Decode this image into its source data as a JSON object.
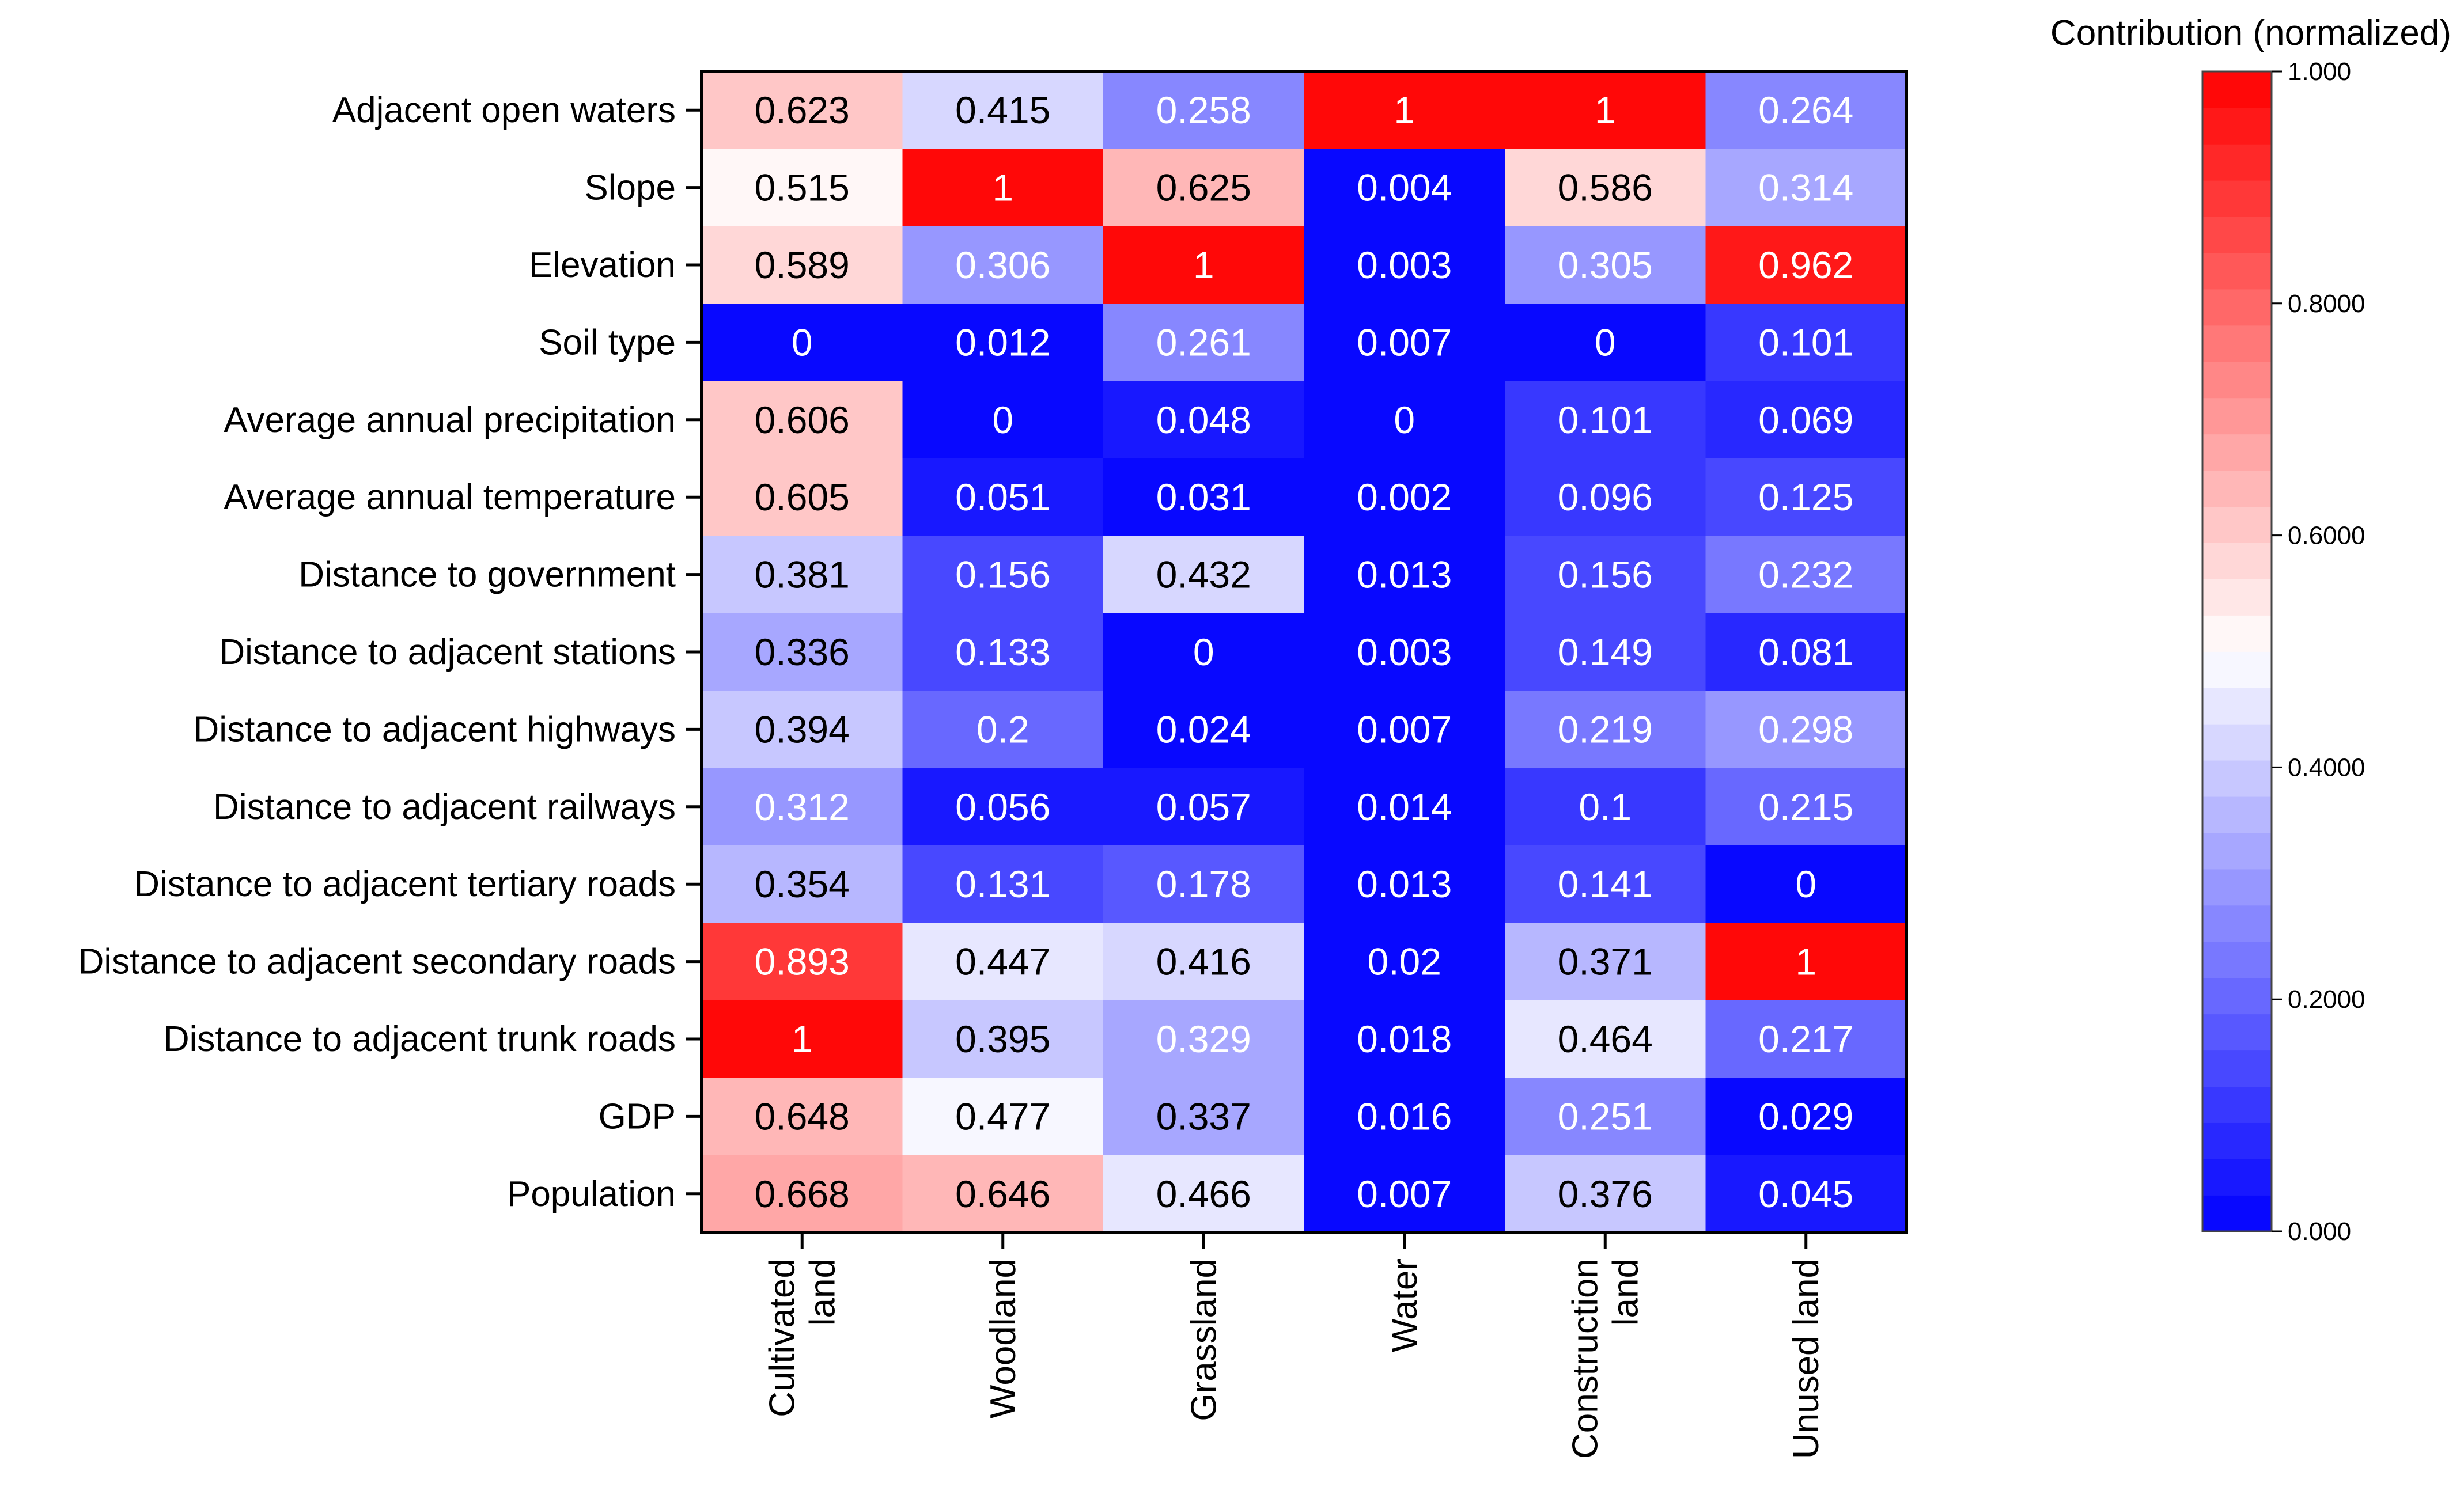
{
  "chart_data": {
    "type": "heatmap",
    "rows": [
      "Adjacent open waters",
      "Slope",
      "Elevation",
      "Soil type",
      "Average annual precipitation",
      "Average annual temperature",
      "Distance to government",
      "Distance to adjacent stations",
      "Distance to adjacent highways",
      "Distance to adjacent railways",
      "Distance to adjacent tertiary roads",
      "Distance to adjacent secondary roads",
      "Distance to adjacent trunk roads",
      "GDP",
      "Population"
    ],
    "columns": [
      [
        "Cultivated",
        "land"
      ],
      [
        "Woodland"
      ],
      [
        "Grassland"
      ],
      [
        "Water"
      ],
      [
        "Construction",
        "land"
      ],
      [
        "Unused land"
      ]
    ],
    "values": [
      [
        0.623,
        0.415,
        0.258,
        1,
        1,
        0.264
      ],
      [
        0.515,
        1,
        0.625,
        0.004,
        0.586,
        0.314
      ],
      [
        0.589,
        0.306,
        1,
        0.003,
        0.305,
        0.962
      ],
      [
        0,
        0.012,
        0.261,
        0.007,
        0,
        0.101
      ],
      [
        0.606,
        0,
        0.048,
        0,
        0.101,
        0.069
      ],
      [
        0.605,
        0.051,
        0.031,
        0.002,
        0.096,
        0.125
      ],
      [
        0.381,
        0.156,
        0.432,
        0.013,
        0.156,
        0.232
      ],
      [
        0.336,
        0.133,
        0,
        0.003,
        0.149,
        0.081
      ],
      [
        0.394,
        0.2,
        0.024,
        0.007,
        0.219,
        0.298
      ],
      [
        0.312,
        0.056,
        0.057,
        0.014,
        0.1,
        0.215
      ],
      [
        0.354,
        0.131,
        0.178,
        0.013,
        0.141,
        0
      ],
      [
        0.893,
        0.447,
        0.416,
        0.02,
        0.371,
        1
      ],
      [
        1,
        0.395,
        0.329,
        0.018,
        0.464,
        0.217
      ],
      [
        0.648,
        0.477,
        0.337,
        0.016,
        0.251,
        0.029
      ],
      [
        0.668,
        0.646,
        0.466,
        0.007,
        0.376,
        0.045
      ]
    ],
    "value_labels": [
      [
        "0.623",
        "0.415",
        "0.258",
        "1",
        "1",
        "0.264"
      ],
      [
        "0.515",
        "1",
        "0.625",
        "0.004",
        "0.586",
        "0.314"
      ],
      [
        "0.589",
        "0.306",
        "1",
        "0.003",
        "0.305",
        "0.962"
      ],
      [
        "0",
        "0.012",
        "0.261",
        "0.007",
        "0",
        "0.101"
      ],
      [
        "0.606",
        "0",
        "0.048",
        "0",
        "0.101",
        "0.069"
      ],
      [
        "0.605",
        "0.051",
        "0.031",
        "0.002",
        "0.096",
        "0.125"
      ],
      [
        "0.381",
        "0.156",
        "0.432",
        "0.013",
        "0.156",
        "0.232"
      ],
      [
        "0.336",
        "0.133",
        "0",
        "0.003",
        "0.149",
        "0.081"
      ],
      [
        "0.394",
        "0.2",
        "0.024",
        "0.007",
        "0.219",
        "0.298"
      ],
      [
        "0.312",
        "0.056",
        "0.057",
        "0.014",
        "0.1",
        "0.215"
      ],
      [
        "0.354",
        "0.131",
        "0.178",
        "0.013",
        "0.141",
        "0"
      ],
      [
        "0.893",
        "0.447",
        "0.416",
        "0.02",
        "0.371",
        "1"
      ],
      [
        "1",
        "0.395",
        "0.329",
        "0.018",
        "0.464",
        "0.217"
      ],
      [
        "0.648",
        "0.477",
        "0.337",
        "0.016",
        "0.251",
        "0.029"
      ],
      [
        "0.668",
        "0.646",
        "0.466",
        "0.007",
        "0.376",
        "0.045"
      ]
    ],
    "colorbar": {
      "title": "Contribution (normalized)",
      "range": [
        0,
        1
      ],
      "steps": 32,
      "tick_values": [
        0,
        0.2,
        0.4,
        0.6,
        0.8,
        1
      ],
      "tick_labels": [
        "0.000",
        "0.2000",
        "0.4000",
        "0.6000",
        "0.8000",
        "1.000"
      ]
    },
    "colors": {
      "low": "#0000ff",
      "mid": "#ffffff",
      "high": "#ff0000",
      "frame": "#000000"
    }
  }
}
